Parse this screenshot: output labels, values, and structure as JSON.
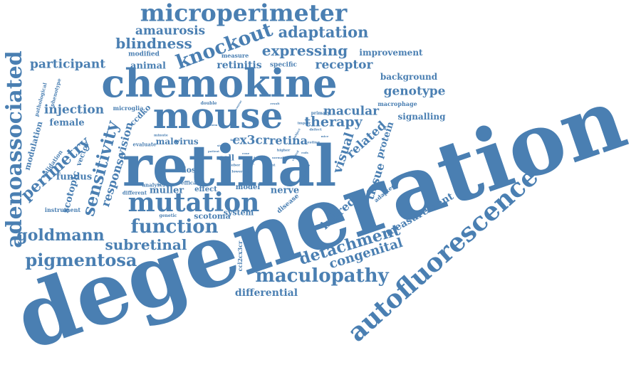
{
  "color": "#4a7fb2",
  "words": [
    "degeneration",
    "retinal",
    "chemokine",
    "mouse",
    "mutation",
    "autofluorescence",
    "microperimeter",
    "knockout",
    "adenoassociated",
    "function",
    "maculopathy",
    "detachment",
    "subretinal",
    "pigmentosa",
    "sensitivity",
    "perimetry",
    "goldmann",
    "adaptation",
    "expressing",
    "blindness",
    "amaurosis",
    "participant",
    "injection",
    "congenital",
    "measurement",
    "genotype",
    "therapy",
    "macular",
    "related",
    "visual",
    "retina",
    "cx3cr",
    "receptor",
    "inbred",
    "differential",
    "tissue",
    "retinitis",
    "improvement",
    "background",
    "animal",
    "response",
    "vision",
    "scotopic",
    "fundus",
    "muller",
    "female",
    "protein",
    "signalling",
    "nerve",
    "scotoma",
    "system",
    "virus",
    "male",
    "dose",
    "cell",
    "effect",
    "model",
    "ccdko",
    "microglia",
    "modulation",
    "vector",
    "validation",
    "instrument",
    "analyser",
    "efficacy",
    "different",
    "evaluate",
    "reduction",
    "genetic",
    "specific",
    "measure",
    "modified",
    "phenotype",
    "pathological",
    "primary",
    "macrophage",
    "adapted",
    "disease",
    "fixation",
    "ccl2cx3cr",
    "double",
    "minute",
    "defect",
    "impair",
    "higher",
    "lower",
    "light",
    "leber",
    "dark",
    "year",
    "testing",
    "study",
    "course",
    "subject",
    "control",
    "cone",
    "factor",
    "form",
    "result",
    "patient",
    "normal",
    "mice",
    "rods"
  ]
}
